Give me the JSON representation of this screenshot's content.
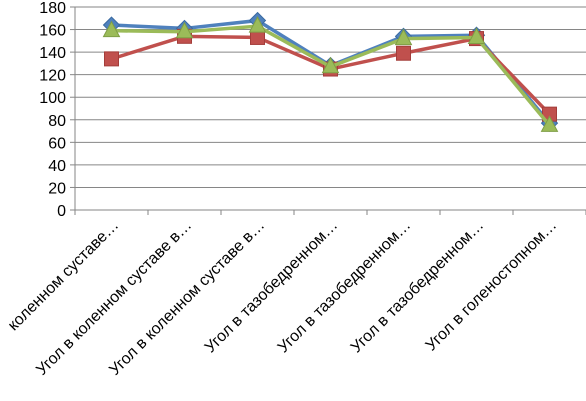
{
  "chart_data": {
    "type": "line",
    "categories": [
      "коленном суставе…",
      "Угол в коленном суставе в…",
      "Угол в коленном суставе в…",
      "Угол в тазобедренном…",
      "Угол в тазобедренном…",
      "Угол в тазобедренном…",
      "Угол в голеностопном…"
    ],
    "ylim": [
      0,
      180
    ],
    "yticks": [
      0,
      20,
      40,
      60,
      80,
      100,
      120,
      140,
      160,
      180
    ],
    "grid": true,
    "legend": "none",
    "series": [
      {
        "marker": "diamond",
        "color": "#4F81BD",
        "values": [
          164,
          161,
          168,
          128,
          154,
          155,
          77
        ]
      },
      {
        "marker": "square",
        "color": "#C0504D",
        "values": [
          134,
          154,
          153,
          125,
          139,
          152,
          85
        ]
      },
      {
        "marker": "triangle",
        "color": "#9BBB59",
        "values": [
          159,
          158,
          163,
          127,
          152,
          153,
          75
        ]
      }
    ]
  }
}
